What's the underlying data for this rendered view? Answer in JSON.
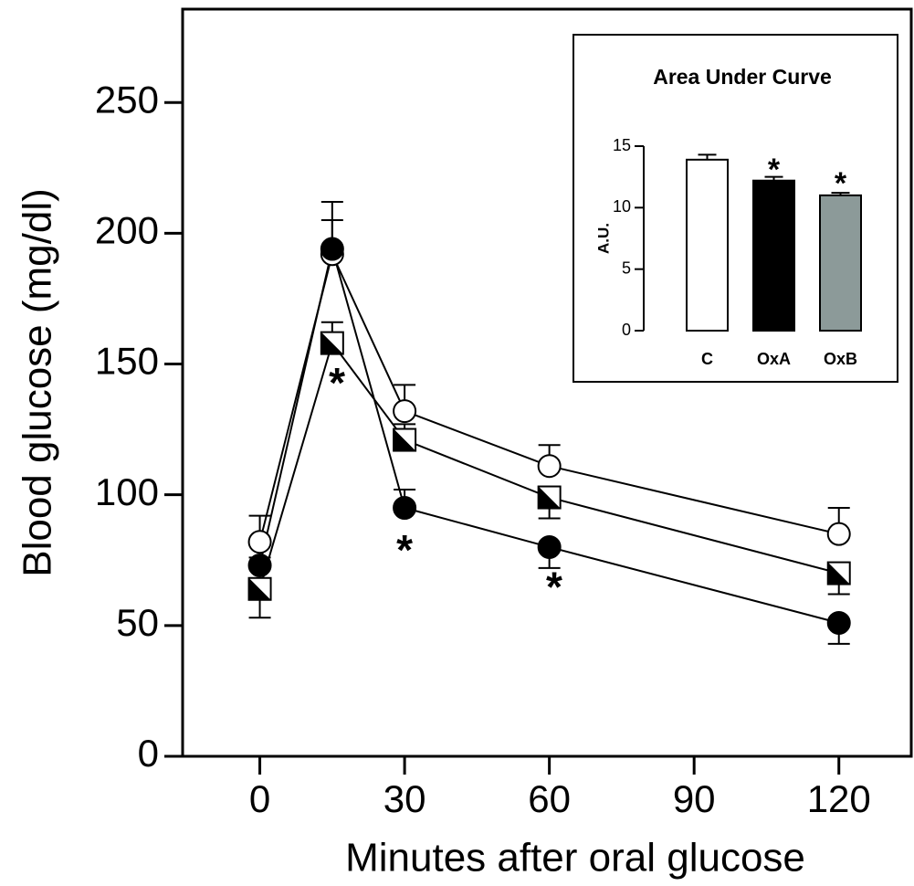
{
  "chart_data": [
    {
      "type": "line",
      "xlabel": "Minutes after oral glucose",
      "ylabel": "Blood glucose (mg/dl)",
      "x": [
        0,
        15,
        30,
        60,
        120
      ],
      "xlim": [
        -16,
        135
      ],
      "xticks": [
        0,
        30,
        60,
        90,
        120
      ],
      "ylim": [
        0,
        285
      ],
      "yticks": [
        0,
        50,
        100,
        150,
        200,
        250
      ],
      "series": [
        {
          "marker": "circle-open",
          "color": "#000000",
          "values": [
            82,
            192,
            132,
            111,
            85
          ],
          "errors": [
            10,
            20,
            10,
            8,
            10
          ],
          "error_side": [
            "up",
            "up",
            "up",
            "up",
            "up"
          ]
        },
        {
          "marker": "square-half",
          "color": "#000000",
          "values": [
            64,
            158,
            121,
            99,
            70
          ],
          "errors": [
            11,
            8,
            6,
            8,
            8
          ],
          "error_side": [
            "down",
            "up",
            "up",
            "down",
            "down"
          ]
        },
        {
          "marker": "circle-filled",
          "color": "#000000",
          "values": [
            73,
            194,
            95,
            80,
            51
          ],
          "errors": [
            3,
            11,
            7,
            8,
            8
          ],
          "error_side": [
            "up",
            "up",
            "up",
            "down",
            "down"
          ]
        }
      ],
      "annotations": [
        {
          "text": "*",
          "x": 16,
          "y": 145
        },
        {
          "text": "*",
          "x": 30,
          "y": 81
        },
        {
          "text": "*",
          "x": 61,
          "y": 67
        }
      ]
    },
    {
      "type": "bar",
      "title": "Area Under Curve",
      "ylabel": "A.U.",
      "categories": [
        "C",
        "OxA",
        "OxB"
      ],
      "values": [
        13.9,
        12.2,
        11.0
      ],
      "errors": [
        0.4,
        0.3,
        0.2
      ],
      "colors": [
        "#ffffff",
        "#000000",
        "#8c9a99"
      ],
      "ylim": [
        0,
        15
      ],
      "yticks": [
        0,
        5,
        10,
        15
      ],
      "annotations": [
        {
          "text": "*",
          "x": 1,
          "y": 13.5
        },
        {
          "text": "*",
          "x": 2,
          "y": 12.4
        }
      ]
    }
  ]
}
